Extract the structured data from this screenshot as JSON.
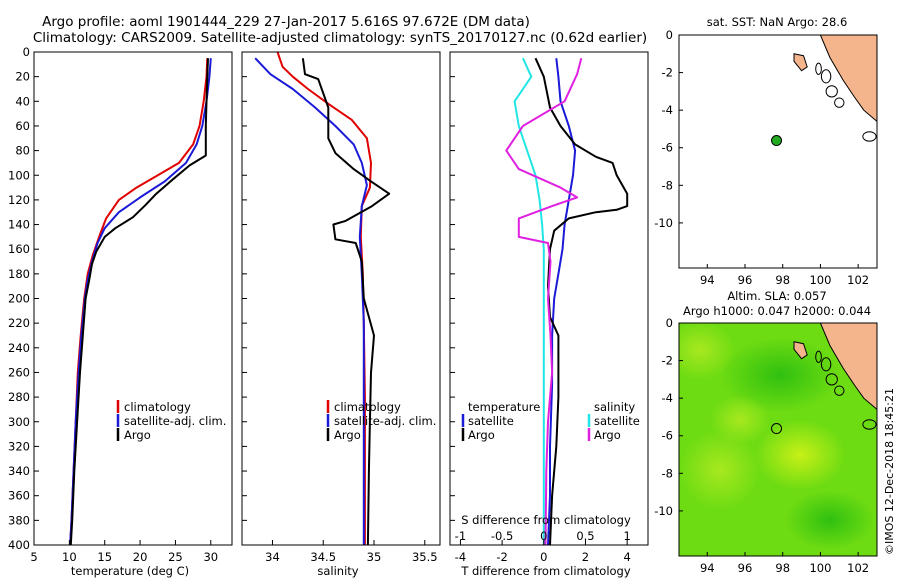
{
  "figure": {
    "title_line1": "Argo profile: aoml 1901444_229 27-Jan-2017 5.616S 97.672E (DM data)",
    "title_line2": "Climatology: CARS2009. Satellite-adjusted climatology: synTS_20170127.nc (0.62d earlier)",
    "sst_title": "sat. SST: NaN Argo: 28.6",
    "sla_title_line1": "Altim. SLA: 0.057",
    "sla_title_line2": "Argo h1000: 0.047 h2000: 0.044",
    "timestamp": "©IMOS 12-Dec-2018 18:45:21"
  },
  "colors": {
    "climatology": "#e00000",
    "satellite": "#1a1ad8",
    "argo": "#000000",
    "salinity_sat": "#22e5e5",
    "salinity_argo": "#e020e0",
    "land": "#f5b58c",
    "float_marker": "#22aa22"
  },
  "chart_data": [
    {
      "type": "line",
      "name": "temperature",
      "xlabel": "temperature (deg C)",
      "ylabel": "",
      "xlim": [
        5,
        33
      ],
      "ylim": [
        400,
        0
      ],
      "xticks": [
        5,
        10,
        15,
        20,
        25,
        30
      ],
      "yticks": [
        0,
        20,
        40,
        60,
        80,
        100,
        120,
        140,
        160,
        180,
        200,
        220,
        240,
        260,
        280,
        300,
        320,
        340,
        360,
        380,
        400
      ],
      "legend": [
        "climatology",
        "satellite-adj. clim.",
        "Argo"
      ],
      "legend_location": "lower-right",
      "series": [
        {
          "name": "climatology",
          "color_key": "climatology",
          "points": [
            [
              29.5,
              5
            ],
            [
              29.4,
              20
            ],
            [
              29.0,
              40
            ],
            [
              28.4,
              60
            ],
            [
              27.5,
              75
            ],
            [
              25.5,
              90
            ],
            [
              22.5,
              100
            ],
            [
              19.5,
              110
            ],
            [
              17.0,
              120
            ],
            [
              15.2,
              135
            ],
            [
              14.2,
              150
            ],
            [
              13.3,
              165
            ],
            [
              12.6,
              180
            ],
            [
              12.1,
              200
            ],
            [
              11.6,
              230
            ],
            [
              11.2,
              260
            ],
            [
              10.9,
              300
            ],
            [
              10.6,
              340
            ],
            [
              10.3,
              380
            ],
            [
              10.1,
              400
            ]
          ]
        },
        {
          "name": "satellite-adj. clim.",
          "color_key": "satellite",
          "points": [
            [
              30.0,
              5
            ],
            [
              29.8,
              20
            ],
            [
              29.4,
              40
            ],
            [
              28.8,
              60
            ],
            [
              28.0,
              75
            ],
            [
              26.5,
              90
            ],
            [
              23.5,
              105
            ],
            [
              20.0,
              118
            ],
            [
              17.0,
              130
            ],
            [
              15.0,
              143
            ],
            [
              14.0,
              155
            ],
            [
              13.2,
              170
            ],
            [
              12.6,
              185
            ],
            [
              12.2,
              200
            ],
            [
              11.7,
              230
            ],
            [
              11.3,
              260
            ],
            [
              10.9,
              300
            ],
            [
              10.6,
              340
            ],
            [
              10.3,
              380
            ],
            [
              10.1,
              400
            ]
          ]
        },
        {
          "name": "Argo",
          "color_key": "argo",
          "points": [
            [
              29.6,
              5
            ],
            [
              29.5,
              20
            ],
            [
              29.4,
              40
            ],
            [
              29.3,
              60
            ],
            [
              29.3,
              84
            ],
            [
              27.0,
              92
            ],
            [
              24.5,
              104
            ],
            [
              22.3,
              115
            ],
            [
              20.8,
              124
            ],
            [
              19.0,
              134
            ],
            [
              16.5,
              143
            ],
            [
              15.0,
              150
            ],
            [
              13.8,
              162
            ],
            [
              13.2,
              172
            ],
            [
              12.8,
              185
            ],
            [
              12.3,
              200
            ],
            [
              11.9,
              230
            ],
            [
              11.5,
              260
            ],
            [
              11.1,
              300
            ],
            [
              10.7,
              340
            ],
            [
              10.4,
              380
            ],
            [
              10.2,
              400
            ]
          ]
        }
      ]
    },
    {
      "type": "line",
      "name": "salinity",
      "xlabel": "salinity",
      "xlim": [
        33.7,
        35.65
      ],
      "ylim": [
        400,
        0
      ],
      "xticks": [
        34,
        34.5,
        35,
        35.5
      ],
      "legend": [
        "climatology",
        "satellite-adj. clim.",
        "Argo"
      ],
      "legend_location": "lower-right",
      "series": [
        {
          "name": "climatology",
          "color_key": "climatology",
          "points": [
            [
              34.05,
              0
            ],
            [
              34.1,
              12
            ],
            [
              34.2,
              20
            ],
            [
              34.35,
              30
            ],
            [
              34.55,
              42
            ],
            [
              34.78,
              55
            ],
            [
              34.93,
              70
            ],
            [
              34.97,
              90
            ],
            [
              34.96,
              110
            ],
            [
              34.88,
              125
            ],
            [
              34.87,
              150
            ],
            [
              34.89,
              180
            ],
            [
              34.9,
              220
            ],
            [
              34.91,
              280
            ],
            [
              34.91,
              340
            ],
            [
              34.91,
              400
            ]
          ]
        },
        {
          "name": "satellite-adj. clim.",
          "color_key": "satellite",
          "points": [
            [
              33.83,
              5
            ],
            [
              33.98,
              18
            ],
            [
              34.2,
              30
            ],
            [
              34.42,
              45
            ],
            [
              34.62,
              60
            ],
            [
              34.8,
              75
            ],
            [
              34.88,
              90
            ],
            [
              34.93,
              108
            ],
            [
              34.88,
              125
            ],
            [
              34.86,
              150
            ],
            [
              34.88,
              180
            ],
            [
              34.9,
              220
            ],
            [
              34.9,
              280
            ],
            [
              34.9,
              340
            ],
            [
              34.9,
              400
            ]
          ]
        },
        {
          "name": "Argo",
          "color_key": "argo",
          "points": [
            [
              34.3,
              5
            ],
            [
              34.32,
              18
            ],
            [
              34.45,
              22
            ],
            [
              34.55,
              45
            ],
            [
              34.55,
              70
            ],
            [
              34.62,
              82
            ],
            [
              34.8,
              95
            ],
            [
              34.97,
              105
            ],
            [
              35.15,
              115
            ],
            [
              34.98,
              125
            ],
            [
              34.72,
              137
            ],
            [
              34.6,
              140
            ],
            [
              34.62,
              152
            ],
            [
              34.82,
              155
            ],
            [
              34.88,
              170
            ],
            [
              34.9,
              200
            ],
            [
              34.95,
              215
            ],
            [
              35.0,
              230
            ],
            [
              34.97,
              260
            ],
            [
              34.96,
              300
            ],
            [
              34.95,
              340
            ],
            [
              34.94,
              400
            ]
          ]
        }
      ]
    },
    {
      "type": "line",
      "name": "difference",
      "xlabel": "T difference from climatology",
      "top_axis_label": "S difference from climatology",
      "xlim": [
        -4.5,
        5.0
      ],
      "ylim": [
        400,
        0
      ],
      "xticks": [
        -4,
        -2,
        0,
        2,
        4
      ],
      "top_xticks": [
        -1,
        -0.5,
        0,
        0.5,
        1
      ],
      "top_xtick_labels": [
        "-1",
        "-0.5",
        "0",
        "0.5",
        "1"
      ],
      "legend_groups": [
        {
          "heading": "temperature",
          "entries": [
            "satellite",
            "Argo"
          ]
        },
        {
          "heading": "salinity",
          "entries": [
            "satellite",
            "Argo"
          ]
        }
      ],
      "series": [
        {
          "name": "T satellite",
          "color_key": "satellite",
          "axis": "T",
          "points": [
            [
              0.6,
              5
            ],
            [
              0.7,
              20
            ],
            [
              0.8,
              40
            ],
            [
              1.2,
              60
            ],
            [
              1.5,
              80
            ],
            [
              1.4,
              100
            ],
            [
              1.2,
              120
            ],
            [
              1.0,
              140
            ],
            [
              0.9,
              160
            ],
            [
              0.7,
              180
            ],
            [
              0.5,
              200
            ],
            [
              0.4,
              230
            ],
            [
              0.4,
              270
            ],
            [
              0.3,
              320
            ],
            [
              0.3,
              360
            ],
            [
              0.2,
              400
            ]
          ]
        },
        {
          "name": "T Argo",
          "color_key": "argo",
          "axis": "T",
          "points": [
            [
              -0.4,
              5
            ],
            [
              0.0,
              20
            ],
            [
              0.3,
              45
            ],
            [
              0.8,
              60
            ],
            [
              1.5,
              75
            ],
            [
              2.5,
              85
            ],
            [
              3.3,
              90
            ],
            [
              3.5,
              100
            ],
            [
              4.0,
              115
            ],
            [
              4.0,
              125
            ],
            [
              3.5,
              128
            ],
            [
              2.5,
              130
            ],
            [
              1.2,
              135
            ],
            [
              0.5,
              145
            ],
            [
              0.3,
              160
            ],
            [
              0.2,
              190
            ],
            [
              0.3,
              215
            ],
            [
              0.7,
              230
            ],
            [
              0.7,
              280
            ],
            [
              0.6,
              320
            ],
            [
              0.4,
              360
            ],
            [
              0.3,
              400
            ]
          ]
        },
        {
          "name": "S satellite",
          "color_key": "salinity_sat",
          "axis": "S",
          "points": [
            [
              -0.25,
              5
            ],
            [
              -0.15,
              20
            ],
            [
              -0.35,
              40
            ],
            [
              -0.3,
              60
            ],
            [
              -0.2,
              80
            ],
            [
              -0.1,
              100
            ],
            [
              -0.05,
              120
            ],
            [
              -0.02,
              140
            ],
            [
              0.0,
              160
            ],
            [
              0.0,
              200
            ],
            [
              0.0,
              260
            ],
            [
              0.0,
              320
            ],
            [
              0.0,
              400
            ]
          ]
        },
        {
          "name": "S Argo",
          "color_key": "salinity_argo",
          "axis": "S",
          "points": [
            [
              0.45,
              5
            ],
            [
              0.4,
              18
            ],
            [
              0.25,
              40
            ],
            [
              -0.25,
              60
            ],
            [
              -0.45,
              80
            ],
            [
              -0.3,
              95
            ],
            [
              0.2,
              110
            ],
            [
              0.4,
              118
            ],
            [
              0.1,
              125
            ],
            [
              -0.3,
              135
            ],
            [
              -0.3,
              150
            ],
            [
              0.05,
              155
            ],
            [
              0.08,
              170
            ],
            [
              0.05,
              200
            ],
            [
              0.08,
              230
            ],
            [
              0.1,
              260
            ],
            [
              0.05,
              300
            ],
            [
              0.03,
              340
            ],
            [
              0.02,
              400
            ]
          ]
        }
      ]
    },
    {
      "type": "scatter",
      "name": "sst_map",
      "title": "sat. SST: NaN Argo: 28.6",
      "xlim": [
        92.5,
        103
      ],
      "ylim": [
        -12.4,
        0
      ],
      "xticks": [
        94,
        96,
        98,
        100,
        102
      ],
      "yticks": [
        0,
        -2,
        -4,
        -6,
        -8,
        -10
      ],
      "points": [
        {
          "lon": 97.672,
          "lat": -5.616,
          "label": "Argo float"
        }
      ]
    },
    {
      "type": "heatmap",
      "name": "sla_map",
      "title": "Altim. SLA: 0.057",
      "subtitle": "Argo h1000: 0.047 h2000: 0.044",
      "xlim": [
        92.5,
        103
      ],
      "ylim": [
        -12.4,
        0
      ],
      "xticks": [
        94,
        96,
        98,
        100,
        102
      ],
      "yticks": [
        0,
        -2,
        -4,
        -6,
        -8,
        -10
      ],
      "points": [
        {
          "lon": 97.672,
          "lat": -5.616,
          "label": "Argo float"
        }
      ]
    }
  ]
}
